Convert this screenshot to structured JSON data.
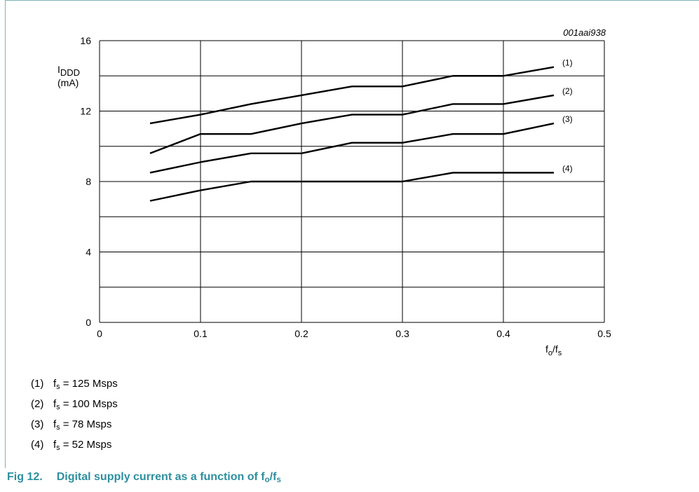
{
  "figure_id": "001aai938",
  "chart_data": {
    "type": "line",
    "xlim": [
      0,
      0.5
    ],
    "ylim": [
      0,
      16
    ],
    "x_ticks": [
      "0",
      "0.1",
      "0.2",
      "0.3",
      "0.4",
      "0.5"
    ],
    "y_ticks": [
      "0",
      "4",
      "8",
      "12",
      "16"
    ],
    "grid": true,
    "ylabel_main": "I",
    "ylabel_sub": "DDD",
    "ylabel_unit": "(mA)",
    "xlabel_num": "f",
    "xlabel_num_sub": "o",
    "xlabel_den": "/f",
    "xlabel_den_sub": "s",
    "series": [
      {
        "name": "(1)",
        "x": [
          0.05,
          0.1,
          0.15,
          0.2,
          0.25,
          0.3,
          0.35,
          0.4,
          0.45
        ],
        "values": [
          11.3,
          11.8,
          12.4,
          12.9,
          13.4,
          13.4,
          14.0,
          14.0,
          14.5
        ]
      },
      {
        "name": "(2)",
        "x": [
          0.05,
          0.1,
          0.15,
          0.2,
          0.25,
          0.3,
          0.35,
          0.4,
          0.45
        ],
        "values": [
          9.6,
          10.7,
          10.7,
          11.3,
          11.8,
          11.8,
          12.4,
          12.4,
          12.9
        ]
      },
      {
        "name": "(3)",
        "x": [
          0.05,
          0.1,
          0.15,
          0.2,
          0.25,
          0.3,
          0.35,
          0.4,
          0.45
        ],
        "values": [
          8.5,
          9.1,
          9.6,
          9.6,
          10.2,
          10.2,
          10.7,
          10.7,
          11.3
        ]
      },
      {
        "name": "(4)",
        "x": [
          0.05,
          0.1,
          0.15,
          0.2,
          0.25,
          0.3,
          0.35,
          0.4,
          0.45
        ],
        "values": [
          6.9,
          7.5,
          8.0,
          8.0,
          8.0,
          8.0,
          8.5,
          8.5,
          8.5
        ]
      }
    ]
  },
  "legend": [
    {
      "num": "(1)",
      "f": "f",
      "sub": "s",
      "text": " = 125 Msps"
    },
    {
      "num": "(2)",
      "f": "f",
      "sub": "s",
      "text": " = 100 Msps"
    },
    {
      "num": "(3)",
      "f": "f",
      "sub": "s",
      "text": " = 78 Msps"
    },
    {
      "num": "(4)",
      "f": "f",
      "sub": "s",
      "text": " = 52 Msps"
    }
  ],
  "caption": {
    "fig": "Fig 12.",
    "text": "Digital supply current as a function of f",
    "sub1": "o",
    "slash": "/f",
    "sub2": "s"
  },
  "colors": {
    "caption": "#2e8fa0",
    "frame": "#7fb3b8",
    "line": "#000000"
  }
}
